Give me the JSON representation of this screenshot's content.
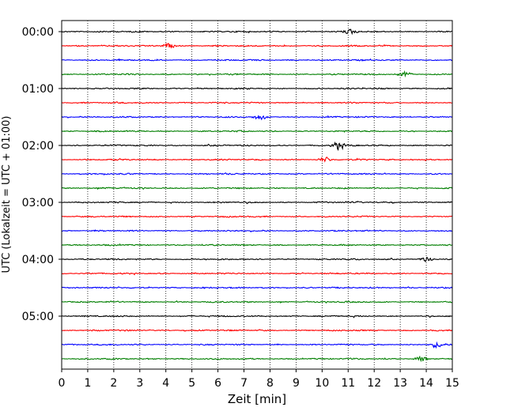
{
  "chart_data": {
    "type": "line",
    "title": "",
    "xlabel": "Zeit  [min]",
    "ylabel": "UTC (Lokalzeit = UTC + 01:00)",
    "xlim": [
      0,
      15
    ],
    "x_ticks": [
      0,
      1,
      2,
      3,
      4,
      5,
      6,
      7,
      8,
      9,
      10,
      11,
      12,
      13,
      14,
      15
    ],
    "y_tick_labels": [
      "00:00",
      "01:00",
      "02:00",
      "03:00",
      "04:00",
      "05:00"
    ],
    "grid": "vertical-dotted",
    "minutes_per_trace": 15,
    "trace_colors": [
      "#000000",
      "#ff0000",
      "#0000ff",
      "#007f00"
    ],
    "series": [
      {
        "start": "00:00",
        "color": "#000000"
      },
      {
        "start": "00:15",
        "color": "#ff0000"
      },
      {
        "start": "00:30",
        "color": "#0000ff"
      },
      {
        "start": "00:45",
        "color": "#007f00"
      },
      {
        "start": "01:00",
        "color": "#000000"
      },
      {
        "start": "01:15",
        "color": "#ff0000"
      },
      {
        "start": "01:30",
        "color": "#0000ff"
      },
      {
        "start": "01:45",
        "color": "#007f00"
      },
      {
        "start": "02:00",
        "color": "#000000"
      },
      {
        "start": "02:15",
        "color": "#ff0000"
      },
      {
        "start": "02:30",
        "color": "#0000ff"
      },
      {
        "start": "02:45",
        "color": "#007f00"
      },
      {
        "start": "03:00",
        "color": "#000000"
      },
      {
        "start": "03:15",
        "color": "#ff0000"
      },
      {
        "start": "03:30",
        "color": "#0000ff"
      },
      {
        "start": "03:45",
        "color": "#007f00"
      },
      {
        "start": "04:00",
        "color": "#000000"
      },
      {
        "start": "04:15",
        "color": "#ff0000"
      },
      {
        "start": "04:30",
        "color": "#0000ff"
      },
      {
        "start": "04:45",
        "color": "#007f00"
      },
      {
        "start": "05:00",
        "color": "#000000"
      },
      {
        "start": "05:15",
        "color": "#ff0000"
      },
      {
        "start": "05:30",
        "color": "#0000ff"
      },
      {
        "start": "05:45",
        "color": "#007f00"
      }
    ],
    "events": [
      {
        "start": "02:00",
        "minute": 10.6,
        "amplitude": 2.5
      },
      {
        "start": "00:15",
        "minute": 4.1,
        "amplitude": 1.6
      },
      {
        "start": "01:30",
        "minute": 7.6,
        "amplitude": 1.6
      },
      {
        "start": "00:00",
        "minute": 11.1,
        "amplitude": 1.4
      },
      {
        "start": "05:30",
        "minute": 14.4,
        "amplitude": 1.6
      },
      {
        "start": "05:45",
        "minute": 13.8,
        "amplitude": 1.5
      },
      {
        "start": "00:45",
        "minute": 13.2,
        "amplitude": 1.4
      },
      {
        "start": "04:00",
        "minute": 14.0,
        "amplitude": 1.3
      },
      {
        "start": "02:15",
        "minute": 10.1,
        "amplitude": 1.3
      }
    ]
  }
}
